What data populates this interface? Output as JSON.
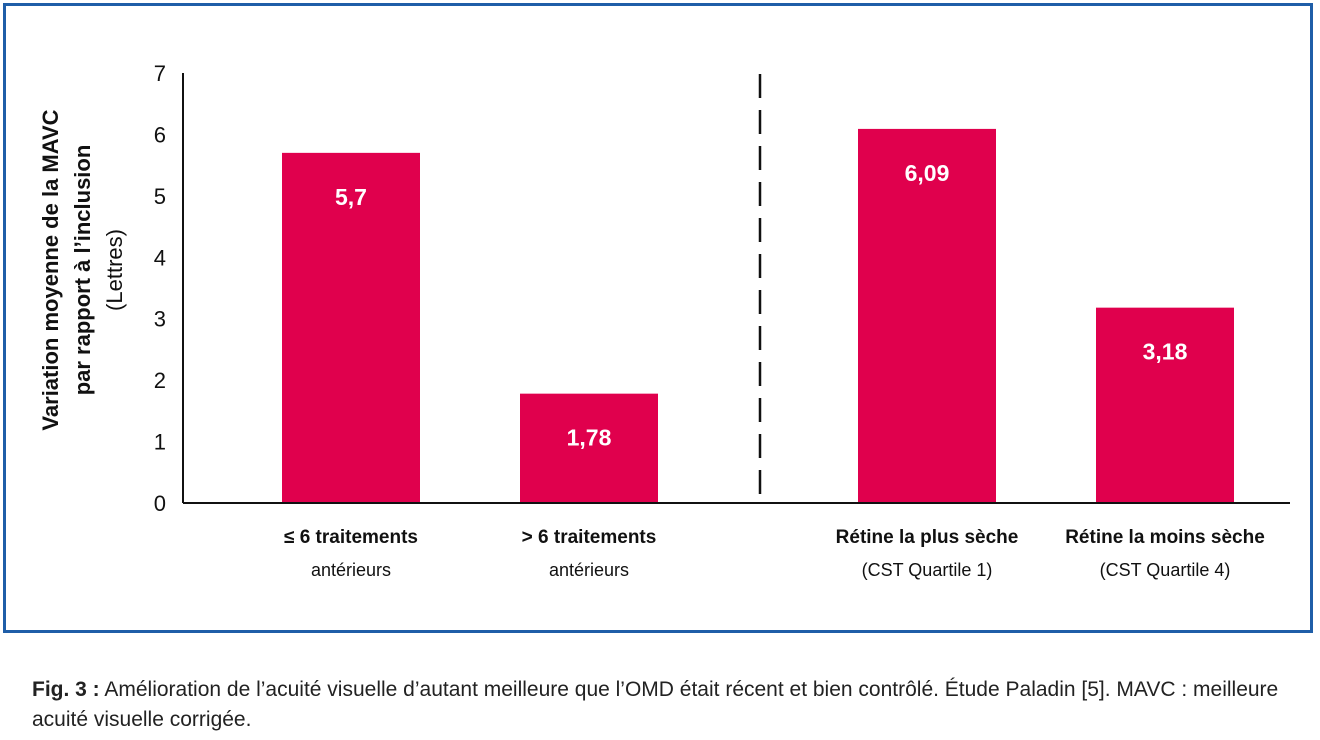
{
  "chart_data": {
    "type": "bar",
    "categories": [
      {
        "line1": "≤ 6 traitements",
        "line2": "antérieurs"
      },
      {
        "line1": "> 6 traitements",
        "line2": "antérieurs"
      },
      {
        "line1": "Rétine la plus sèche",
        "line2": "(CST Quartile 1)"
      },
      {
        "line1": "Rétine la moins sèche",
        "line2": "(CST Quartile 4)"
      }
    ],
    "values": [
      5.7,
      1.78,
      6.09,
      3.18
    ],
    "value_labels": [
      "5,7",
      "1,78",
      "6,09",
      "3,18"
    ],
    "ylabel_lines": [
      "Variation moyenne de la MAVC",
      "par rapport à l’inclusion",
      "(Lettres)"
    ],
    "ylim": [
      0,
      7
    ],
    "yticks": [
      0,
      1,
      2,
      3,
      4,
      5,
      6,
      7
    ],
    "bar_color": "#e0004d",
    "frame_color": "#1f5ea8",
    "separator": "dashed vertical line between group 1 and group 2",
    "grid": false
  },
  "caption": {
    "prefix": "Fig. 3 :",
    "text": " Amélioration de l’acuité visuelle d’autant meilleure que l’OMD était récent et bien contrôlé. Étude Paladin [5]. MAVC : meilleure acuité visuelle corrigée."
  }
}
